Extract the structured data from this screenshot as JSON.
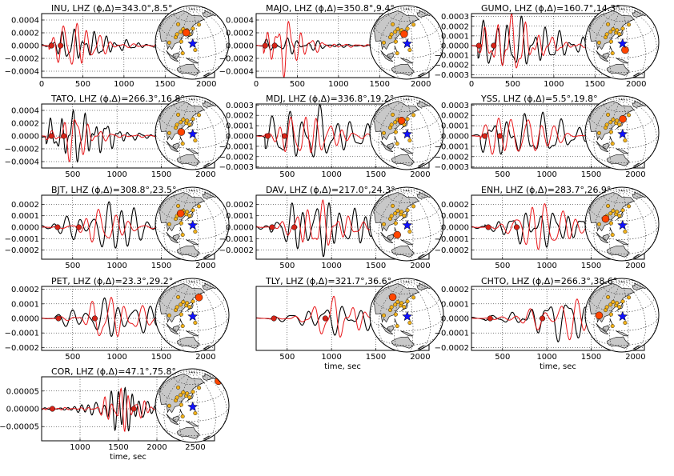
{
  "figure": {
    "xlabel": "time, sec"
  },
  "colors": {
    "observed": "#000000",
    "synthetic": "#e8171a",
    "marker": "#d62418",
    "station": "#ff4500",
    "stations": "#f2b21b",
    "event": "#1010ff",
    "land": "#c8c8c8",
    "ocean": "#ffffff"
  },
  "chart_data": [
    {
      "type": "line",
      "station": "INU",
      "title": "INU, LHZ (ϕ,Δ)=343.0°,8.5°",
      "xlim": [
        0,
        2100
      ],
      "ylim": [
        -0.0005,
        0.0005
      ],
      "xticks": [
        0,
        500,
        1000,
        1500,
        2000
      ],
      "yticks": [
        -0.0004,
        -0.0002,
        0.0,
        0.0002,
        0.0004
      ],
      "xtick_labels": [
        "0",
        "500",
        "1000",
        "1500",
        "2000"
      ],
      "ytick_labels": [
        "−0.0004",
        "−0.0002",
        "0.0000",
        "0.0002",
        "0.0004"
      ],
      "xlabel": "",
      "series": [
        {
          "values": []
        },
        {
          "values": []
        }
      ],
      "markers": [
        120,
        230
      ],
      "signal": {
        "start": 90,
        "end": 1600,
        "peak": 360,
        "obs_amp": 0.00025,
        "syn_amp": 0.00043,
        "period": 140
      },
      "globe": {
        "station_lon": 128,
        "station_lat": 40
      }
    },
    {
      "type": "line",
      "station": "MAJO",
      "title": "MAJO, LHZ (ϕ,Δ)=350.8°,9.4°",
      "xlim": [
        0,
        2100
      ],
      "ylim": [
        -0.0005,
        0.0005
      ],
      "xticks": [
        0,
        500,
        1000,
        1500,
        2000
      ],
      "yticks": [
        -0.0004,
        -0.0002,
        0.0,
        0.0002,
        0.0004
      ],
      "xtick_labels": [
        "0",
        "500",
        "1000",
        "1500",
        "2000"
      ],
      "ytick_labels": [
        "−0.0004",
        "−0.0002",
        "0.0000",
        "0.0002",
        "0.0004"
      ],
      "xlabel": "",
      "series": [
        {
          "values": []
        },
        {
          "values": []
        }
      ],
      "markers": [
        110,
        225
      ],
      "signal": {
        "start": 90,
        "end": 1500,
        "peak": 300,
        "obs_amp": 0.00012,
        "syn_amp": 0.00045,
        "period": 130
      },
      "globe": {
        "station_lon": 135,
        "station_lat": 38
      }
    },
    {
      "type": "line",
      "station": "GUMO",
      "title": "GUMO, LHZ (ϕ,Δ)=160.7°,14.3°",
      "xlim": [
        0,
        2100
      ],
      "ylim": [
        -0.00033,
        0.00033
      ],
      "xticks": [
        0,
        500,
        1000,
        1500,
        2000
      ],
      "yticks": [
        -0.0003,
        -0.0002,
        -0.0001,
        0.0,
        0.0001,
        0.0002,
        0.0003
      ],
      "xtick_labels": [
        "0",
        "500",
        "1000",
        "1500",
        "2000"
      ],
      "ytick_labels": [
        "−0.0003",
        "−0.0002",
        "−0.0001",
        "0.0000",
        "0.0001",
        "0.0002",
        "0.0003"
      ],
      "xlabel": "",
      "series": [
        {
          "values": []
        },
        {
          "values": []
        }
      ],
      "markers": [
        90,
        270
      ],
      "signal": {
        "start": 80,
        "end": 2100,
        "peak": 400,
        "obs_amp": 0.00028,
        "syn_amp": 0.00032,
        "period": 150
      },
      "globe": {
        "station_lon": 145,
        "station_lat": 13
      }
    },
    {
      "type": "line",
      "station": "TATO",
      "title": "TATO, LHZ (ϕ,Δ)=266.3°,16.8°",
      "xlim": [
        150,
        2100
      ],
      "ylim": [
        -0.0005,
        0.0005
      ],
      "xticks": [
        500,
        1000,
        1500,
        2000
      ],
      "yticks": [
        -0.0004,
        -0.0002,
        0.0,
        0.0002,
        0.0004
      ],
      "xtick_labels": [
        "500",
        "1000",
        "1500",
        "2000"
      ],
      "ytick_labels": [
        "−0.0004",
        "−0.0002",
        "0.0000",
        "0.0002",
        "0.0004"
      ],
      "xlabel": "",
      "series": [
        {
          "values": []
        },
        {
          "values": []
        }
      ],
      "markers": [
        260,
        400
      ],
      "signal": {
        "start": 200,
        "end": 1400,
        "peak": 480,
        "obs_amp": 0.00042,
        "syn_amp": 0.00038,
        "period": 120
      },
      "globe": {
        "station_lon": 121,
        "station_lat": 25
      }
    },
    {
      "type": "line",
      "station": "MDJ",
      "title": "MDJ, LHZ (ϕ,Δ)=336.8°,19.2°",
      "xlim": [
        150,
        2100
      ],
      "ylim": [
        -0.00031,
        0.00031
      ],
      "xticks": [
        500,
        1000,
        1500,
        2000
      ],
      "yticks": [
        -0.0003,
        -0.0002,
        -0.0001,
        0.0,
        0.0001,
        0.0002,
        0.0003
      ],
      "xtick_labels": [
        "500",
        "1000",
        "1500",
        "2000"
      ],
      "ytick_labels": [
        "−0.0003",
        "−0.0002",
        "−0.0001",
        "0.0000",
        "0.0001",
        "0.0002",
        "0.0003"
      ],
      "xlabel": "",
      "series": [
        {
          "values": []
        },
        {
          "values": []
        }
      ],
      "markers": [
        280,
        470
      ],
      "signal": {
        "start": 250,
        "end": 2100,
        "peak": 650,
        "obs_amp": 0.00028,
        "syn_amp": 0.00024,
        "period": 160
      },
      "globe": {
        "station_lon": 129,
        "station_lat": 44
      }
    },
    {
      "type": "line",
      "station": "YSS",
      "title": "YSS, LHZ (ϕ,Δ)=5.5°,19.8°",
      "xlim": [
        150,
        2100
      ],
      "ylim": [
        -0.00031,
        0.00031
      ],
      "xticks": [
        500,
        1000,
        1500,
        2000
      ],
      "yticks": [
        -0.0003,
        -0.0002,
        -0.0001,
        0.0,
        0.0001,
        0.0002,
        0.0003
      ],
      "xtick_labels": [
        "500",
        "1000",
        "1500",
        "2000"
      ],
      "ytick_labels": [
        "−0.0003",
        "−0.0002",
        "−0.0001",
        "0.0000",
        "0.0001",
        "0.0002",
        "0.0003"
      ],
      "xlabel": "",
      "series": [
        {
          "values": []
        },
        {
          "values": []
        }
      ],
      "markers": [
        300,
        470
      ],
      "signal": {
        "start": 250,
        "end": 2100,
        "peak": 600,
        "obs_amp": 0.00025,
        "syn_amp": 0.00028,
        "period": 170
      },
      "globe": {
        "station_lon": 142,
        "station_lat": 47
      }
    },
    {
      "type": "line",
      "station": "BJT",
      "title": "BJT, LHZ (ϕ,Δ)=308.8°,23.5°",
      "xlim": [
        150,
        2100
      ],
      "ylim": [
        -0.00028,
        0.00028
      ],
      "xticks": [
        500,
        1000,
        1500,
        2000
      ],
      "yticks": [
        -0.0002,
        -0.0001,
        0.0,
        0.0001,
        0.0002
      ],
      "xtick_labels": [
        "500",
        "1000",
        "1500",
        "2000"
      ],
      "ytick_labels": [
        "−0.0002",
        "−0.0001",
        "0.0000",
        "0.0001",
        "0.0002"
      ],
      "xlabel": "",
      "series": [
        {
          "values": []
        },
        {
          "values": []
        }
      ],
      "markers": [
        330,
        570
      ],
      "signal": {
        "start": 250,
        "end": 1600,
        "peak": 800,
        "obs_amp": 0.00025,
        "syn_amp": 0.00018,
        "period": 170
      },
      "globe": {
        "station_lon": 116,
        "station_lat": 40
      }
    },
    {
      "type": "line",
      "station": "DAV",
      "title": "DAV, LHZ (ϕ,Δ)=217.0°,24.3°",
      "xlim": [
        150,
        2100
      ],
      "ylim": [
        -0.00028,
        0.00028
      ],
      "xticks": [
        500,
        1000,
        1500,
        2000
      ],
      "yticks": [
        -0.0002,
        -0.0001,
        0.0,
        0.0001,
        0.0002
      ],
      "xtick_labels": [
        "500",
        "1000",
        "1500",
        "2000"
      ],
      "ytick_labels": [
        "−0.0002",
        "−0.0001",
        "0.0000",
        "0.0001",
        "0.0002"
      ],
      "xlabel": "",
      "series": [
        {
          "values": []
        },
        {
          "values": []
        }
      ],
      "markers": [
        330,
        580
      ],
      "signal": {
        "start": 300,
        "end": 2100,
        "peak": 800,
        "obs_amp": 0.00025,
        "syn_amp": 0.00022,
        "period": 150
      },
      "globe": {
        "station_lon": 125,
        "station_lat": 7
      }
    },
    {
      "type": "line",
      "station": "ENH",
      "title": "ENH, LHZ (ϕ,Δ)=283.7°,26.9°",
      "xlim": [
        150,
        2100
      ],
      "ylim": [
        -0.00028,
        0.00028
      ],
      "xticks": [
        500,
        1000,
        1500,
        2000
      ],
      "yticks": [
        -0.0002,
        -0.0001,
        0.0,
        0.0001,
        0.0002
      ],
      "xtick_labels": [
        "500",
        "1000",
        "1500",
        "2000"
      ],
      "ytick_labels": [
        "−0.0002",
        "−0.0001",
        "0.0000",
        "0.0001",
        "0.0002"
      ],
      "xlabel": "",
      "series": [
        {
          "values": []
        },
        {
          "values": []
        }
      ],
      "markers": [
        340,
        660
      ],
      "signal": {
        "start": 300,
        "end": 2100,
        "peak": 900,
        "obs_amp": 0.00016,
        "syn_amp": 0.00025,
        "period": 160
      },
      "globe": {
        "station_lon": 109,
        "station_lat": 30
      }
    },
    {
      "type": "line",
      "station": "PET",
      "title": "PET, LHZ (ϕ,Δ)=23.3°,29.2°",
      "xlim": [
        150,
        2100
      ],
      "ylim": [
        -0.00022,
        0.00022
      ],
      "xticks": [
        500,
        1000,
        1500,
        2000
      ],
      "yticks": [
        -0.0002,
        -0.0001,
        0.0,
        0.0001,
        0.0002
      ],
      "xtick_labels": [
        "500",
        "1000",
        "1500",
        "2000"
      ],
      "ytick_labels": [
        "−0.0002",
        "−0.0001",
        "0.0000",
        "0.0001",
        "0.0002"
      ],
      "xlabel": "",
      "series": [
        {
          "values": []
        },
        {
          "values": []
        }
      ],
      "markers": [
        340,
        750
      ],
      "signal": {
        "start": 300,
        "end": 2100,
        "peak": 900,
        "obs_amp": 0.00013,
        "syn_amp": 0.00017,
        "period": 170
      },
      "globe": {
        "station_lon": 158,
        "station_lat": 53
      }
    },
    {
      "type": "line",
      "station": "TLY",
      "title": "TLY, LHZ (ϕ,Δ)=321.7°,36.6°",
      "xlim": [
        150,
        2100
      ],
      "ylim": [
        -0.00022,
        0.00022
      ],
      "xticks": [
        500,
        1000,
        1500,
        2000
      ],
      "yticks": [],
      "xtick_labels": [
        "500",
        "1000",
        "1500",
        "2000"
      ],
      "ytick_labels": [],
      "xlabel": "time, sec",
      "series": [
        {
          "values": []
        },
        {
          "values": []
        }
      ],
      "markers": [
        350,
        930
      ],
      "signal": {
        "start": 300,
        "end": 2100,
        "peak": 1050,
        "obs_amp": 0.0001,
        "syn_amp": 0.00016,
        "period": 180
      },
      "globe": {
        "station_lon": 103,
        "station_lat": 51
      }
    },
    {
      "type": "line",
      "station": "CHTO",
      "title": "CHTO, LHZ (ϕ,Δ)=266.3°,38.6°",
      "xlim": [
        150,
        2100
      ],
      "ylim": [
        -0.00022,
        0.00022
      ],
      "xticks": [
        500,
        1000,
        1500,
        2000
      ],
      "yticks": [
        -0.0002,
        -0.0001,
        0.0,
        0.0001,
        0.0002
      ],
      "xtick_labels": [
        "500",
        "1000",
        "1500",
        "2000"
      ],
      "ytick_labels": [
        "−0.0002",
        "−0.0001",
        "0.0000",
        "0.0001",
        "0.0002"
      ],
      "xlabel": "time, sec",
      "series": [
        {
          "values": []
        },
        {
          "values": []
        }
      ],
      "markers": [
        360,
        950
      ],
      "signal": {
        "start": 300,
        "end": 2100,
        "peak": 1100,
        "obs_amp": 0.00014,
        "syn_amp": 0.00019,
        "period": 190
      },
      "globe": {
        "station_lon": 99,
        "station_lat": 19
      }
    },
    {
      "type": "line",
      "station": "COR",
      "title": "COR, LHZ (ϕ,Δ)=47.1°,75.8°",
      "xlim": [
        500,
        2750
      ],
      "ylim": [
        -9e-05,
        9e-05
      ],
      "xticks": [
        1000,
        1500,
        2000,
        2500
      ],
      "yticks": [
        -5e-05,
        0.0,
        5e-05
      ],
      "xtick_labels": [
        "1000",
        "1500",
        "2000",
        "2500"
      ],
      "ytick_labels": [
        "−0.00005",
        "0.00000",
        "0.00005"
      ],
      "xlabel": "time, sec",
      "series": [
        {
          "values": []
        },
        {
          "values": []
        }
      ],
      "markers": [
        640,
        1700
      ],
      "signal": {
        "start": 550,
        "end": 1900,
        "peak": 1500,
        "obs_amp": 6e-05,
        "syn_amp": 6e-05,
        "period": 110
      },
      "globe": {
        "station_lon": 237,
        "station_lat": 44
      }
    }
  ]
}
